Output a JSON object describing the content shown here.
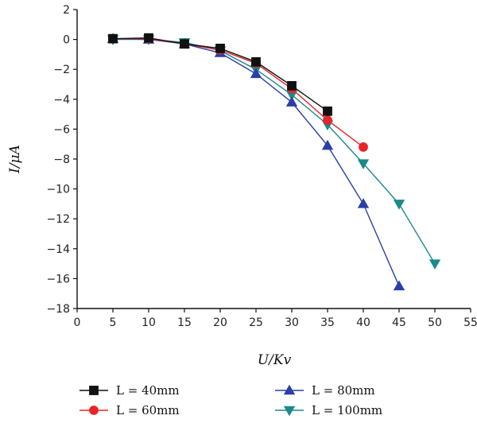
{
  "chart_data": {
    "type": "line",
    "title": "",
    "xlabel": "U/Kv",
    "ylabel": "I/μA",
    "xlim": [
      0,
      55
    ],
    "ylim": [
      -18,
      2
    ],
    "x_ticks": [
      0,
      5,
      10,
      15,
      20,
      25,
      30,
      35,
      40,
      45,
      50,
      55
    ],
    "y_ticks": [
      2,
      0,
      -2,
      -4,
      -6,
      -8,
      -10,
      -12,
      -14,
      -16,
      -18
    ],
    "grid": false,
    "legend_position": "bottom",
    "series": [
      {
        "name": "L = 40mm",
        "color": "#111111",
        "marker": "square",
        "x": [
          5,
          10,
          15,
          20,
          25,
          30,
          35
        ],
        "y": [
          0.05,
          0.1,
          -0.3,
          -0.6,
          -1.5,
          -3.1,
          -4.8
        ]
      },
      {
        "name": "L = 60mm",
        "color": "#e8242a",
        "marker": "circle",
        "x": [
          5,
          10,
          15,
          20,
          25,
          30,
          35,
          40
        ],
        "y": [
          0.05,
          0.05,
          -0.3,
          -0.7,
          -1.6,
          -3.3,
          -5.4,
          -7.2
        ]
      },
      {
        "name": "L = 80mm",
        "color": "#2a3fa8",
        "marker": "triangle-up",
        "x": [
          5,
          10,
          15,
          20,
          25,
          30,
          35,
          40,
          45
        ],
        "y": [
          0.05,
          0.0,
          -0.3,
          -0.9,
          -2.3,
          -4.2,
          -7.1,
          -11.0,
          -16.5
        ]
      },
      {
        "name": "L = 100mm",
        "color": "#1a8a8a",
        "marker": "triangle-down",
        "x": [
          5,
          10,
          15,
          20,
          25,
          30,
          35,
          40,
          45,
          50
        ],
        "y": [
          0.0,
          0.0,
          -0.2,
          -0.75,
          -2.0,
          -3.7,
          -5.7,
          -8.3,
          -11.0,
          -15.0
        ]
      }
    ]
  }
}
